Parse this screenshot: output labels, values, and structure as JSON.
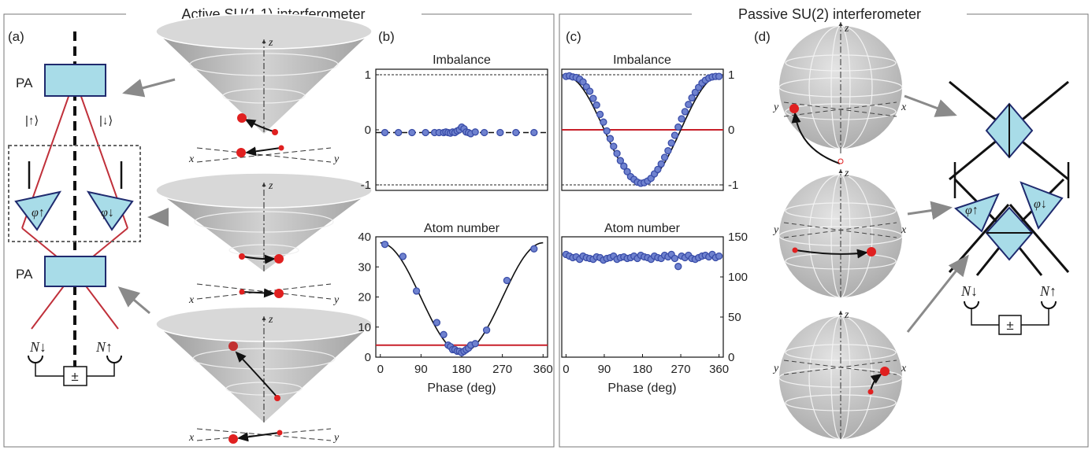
{
  "panels": {
    "left_title": "Active SU(1,1) interferometer",
    "right_title": "Passive SU(2) interferometer",
    "a": "(a)",
    "b": "(b)",
    "c": "(c)",
    "d": "(d)"
  },
  "schematic_a": {
    "pa_top": "PA",
    "pa_bottom": "PA",
    "ket_up": "|↑⟩",
    "ket_down": "|↓⟩",
    "phi_up": "φ↑",
    "phi_down": "φ↓",
    "n_down": "N↓",
    "n_up": "N↑",
    "pm": "±"
  },
  "schematic_d": {
    "phi_up": "φ↑",
    "phi_down": "φ↓",
    "n_down": "N↓",
    "n_up": "N↑",
    "pm": "±"
  },
  "axes_labels": {
    "x": "x",
    "y": "y",
    "z": "z"
  },
  "colors": {
    "data_marker": "#3a4da8",
    "fit_line": "#111111",
    "reference_line": "#c8202a",
    "optic_fill": "#a8dce8",
    "beam": "#c0303a",
    "arrow_gray": "#8a8a8a",
    "red_dot": "#e02020"
  },
  "chart_data": [
    {
      "id": "b-imbalance",
      "type": "scatter",
      "title": "Imbalance",
      "xlim": [
        -10,
        370
      ],
      "ylim": [
        -1.1,
        1.1
      ],
      "yticks": [
        "-1",
        "0",
        "1"
      ],
      "x": [
        10,
        40,
        70,
        100,
        120,
        130,
        140,
        145,
        150,
        155,
        160,
        165,
        170,
        175,
        180,
        185,
        190,
        195,
        200,
        210,
        230,
        265,
        300,
        340
      ],
      "values": [
        -0.05,
        -0.05,
        -0.05,
        -0.05,
        -0.05,
        -0.05,
        -0.05,
        -0.04,
        -0.05,
        -0.06,
        -0.04,
        -0.05,
        -0.02,
        0.0,
        0.05,
        0.02,
        -0.04,
        -0.05,
        -0.07,
        -0.04,
        -0.05,
        -0.05,
        -0.05,
        -0.05
      ]
    },
    {
      "id": "b-atom-number",
      "type": "scatter",
      "title": "Atom number",
      "xlabel": "Phase (deg)",
      "xlim": [
        -10,
        370
      ],
      "ylim": [
        0,
        40
      ],
      "xticks": [
        "0",
        "90",
        "180",
        "270",
        "360"
      ],
      "yticks": [
        "0",
        "10",
        "20",
        "30",
        "40"
      ],
      "x": [
        10,
        50,
        80,
        125,
        140,
        150,
        155,
        160,
        165,
        170,
        175,
        180,
        185,
        190,
        195,
        200,
        210,
        235,
        280,
        340
      ],
      "values": [
        37.5,
        33.5,
        22,
        11.5,
        7.5,
        4,
        3.5,
        2.5,
        2.5,
        2,
        2,
        1.5,
        2,
        2.5,
        3,
        4,
        4.5,
        9,
        25.5,
        36
      ],
      "reference_value": 4
    },
    {
      "id": "c-imbalance",
      "type": "scatter",
      "title": "Imbalance",
      "xlim": [
        -10,
        370
      ],
      "ylim": [
        -1.1,
        1.1
      ],
      "yticks": [
        "-1",
        "0",
        "1"
      ],
      "x": [
        0,
        8,
        16,
        24,
        32,
        40,
        48,
        56,
        64,
        72,
        80,
        88,
        96,
        104,
        112,
        120,
        128,
        136,
        144,
        152,
        160,
        168,
        176,
        184,
        192,
        200,
        208,
        216,
        224,
        232,
        240,
        248,
        256,
        264,
        272,
        280,
        288,
        296,
        304,
        312,
        320,
        328,
        336,
        344,
        352,
        360
      ],
      "values": [
        0.97,
        0.98,
        0.96,
        0.95,
        0.92,
        0.87,
        0.78,
        0.7,
        0.57,
        0.45,
        0.28,
        0.14,
        -0.02,
        -0.16,
        -0.3,
        -0.43,
        -0.56,
        -0.66,
        -0.76,
        -0.85,
        -0.9,
        -0.95,
        -0.97,
        -0.96,
        -0.93,
        -0.88,
        -0.8,
        -0.72,
        -0.62,
        -0.5,
        -0.38,
        -0.24,
        -0.1,
        0.05,
        0.2,
        0.33,
        0.46,
        0.58,
        0.68,
        0.77,
        0.85,
        0.9,
        0.94,
        0.96,
        0.97,
        0.97
      ],
      "reference_value": 0
    },
    {
      "id": "c-atom-number",
      "type": "scatter",
      "title": "Atom number",
      "xlabel": "Phase (deg)",
      "xlim": [
        -10,
        370
      ],
      "ylim": [
        0,
        150
      ],
      "xticks": [
        "0",
        "90",
        "180",
        "270",
        "360"
      ],
      "yticks": [
        "0",
        "50",
        "100",
        "150"
      ],
      "x": [
        0,
        8,
        16,
        24,
        32,
        40,
        48,
        56,
        64,
        72,
        80,
        88,
        96,
        104,
        112,
        120,
        128,
        136,
        144,
        152,
        160,
        168,
        176,
        184,
        192,
        200,
        208,
        216,
        224,
        232,
        240,
        248,
        256,
        264,
        272,
        280,
        288,
        296,
        304,
        312,
        320,
        328,
        336,
        344,
        352,
        360
      ],
      "values": [
        128,
        126,
        124,
        125,
        122,
        126,
        124,
        123,
        122,
        125,
        124,
        121,
        123,
        124,
        126,
        122,
        124,
        125,
        123,
        124,
        126,
        123,
        127,
        125,
        124,
        122,
        126,
        124,
        123,
        127,
        125,
        128,
        123,
        113,
        126,
        124,
        127,
        123,
        122,
        124,
        126,
        127,
        125,
        128,
        124,
        126
      ]
    }
  ]
}
